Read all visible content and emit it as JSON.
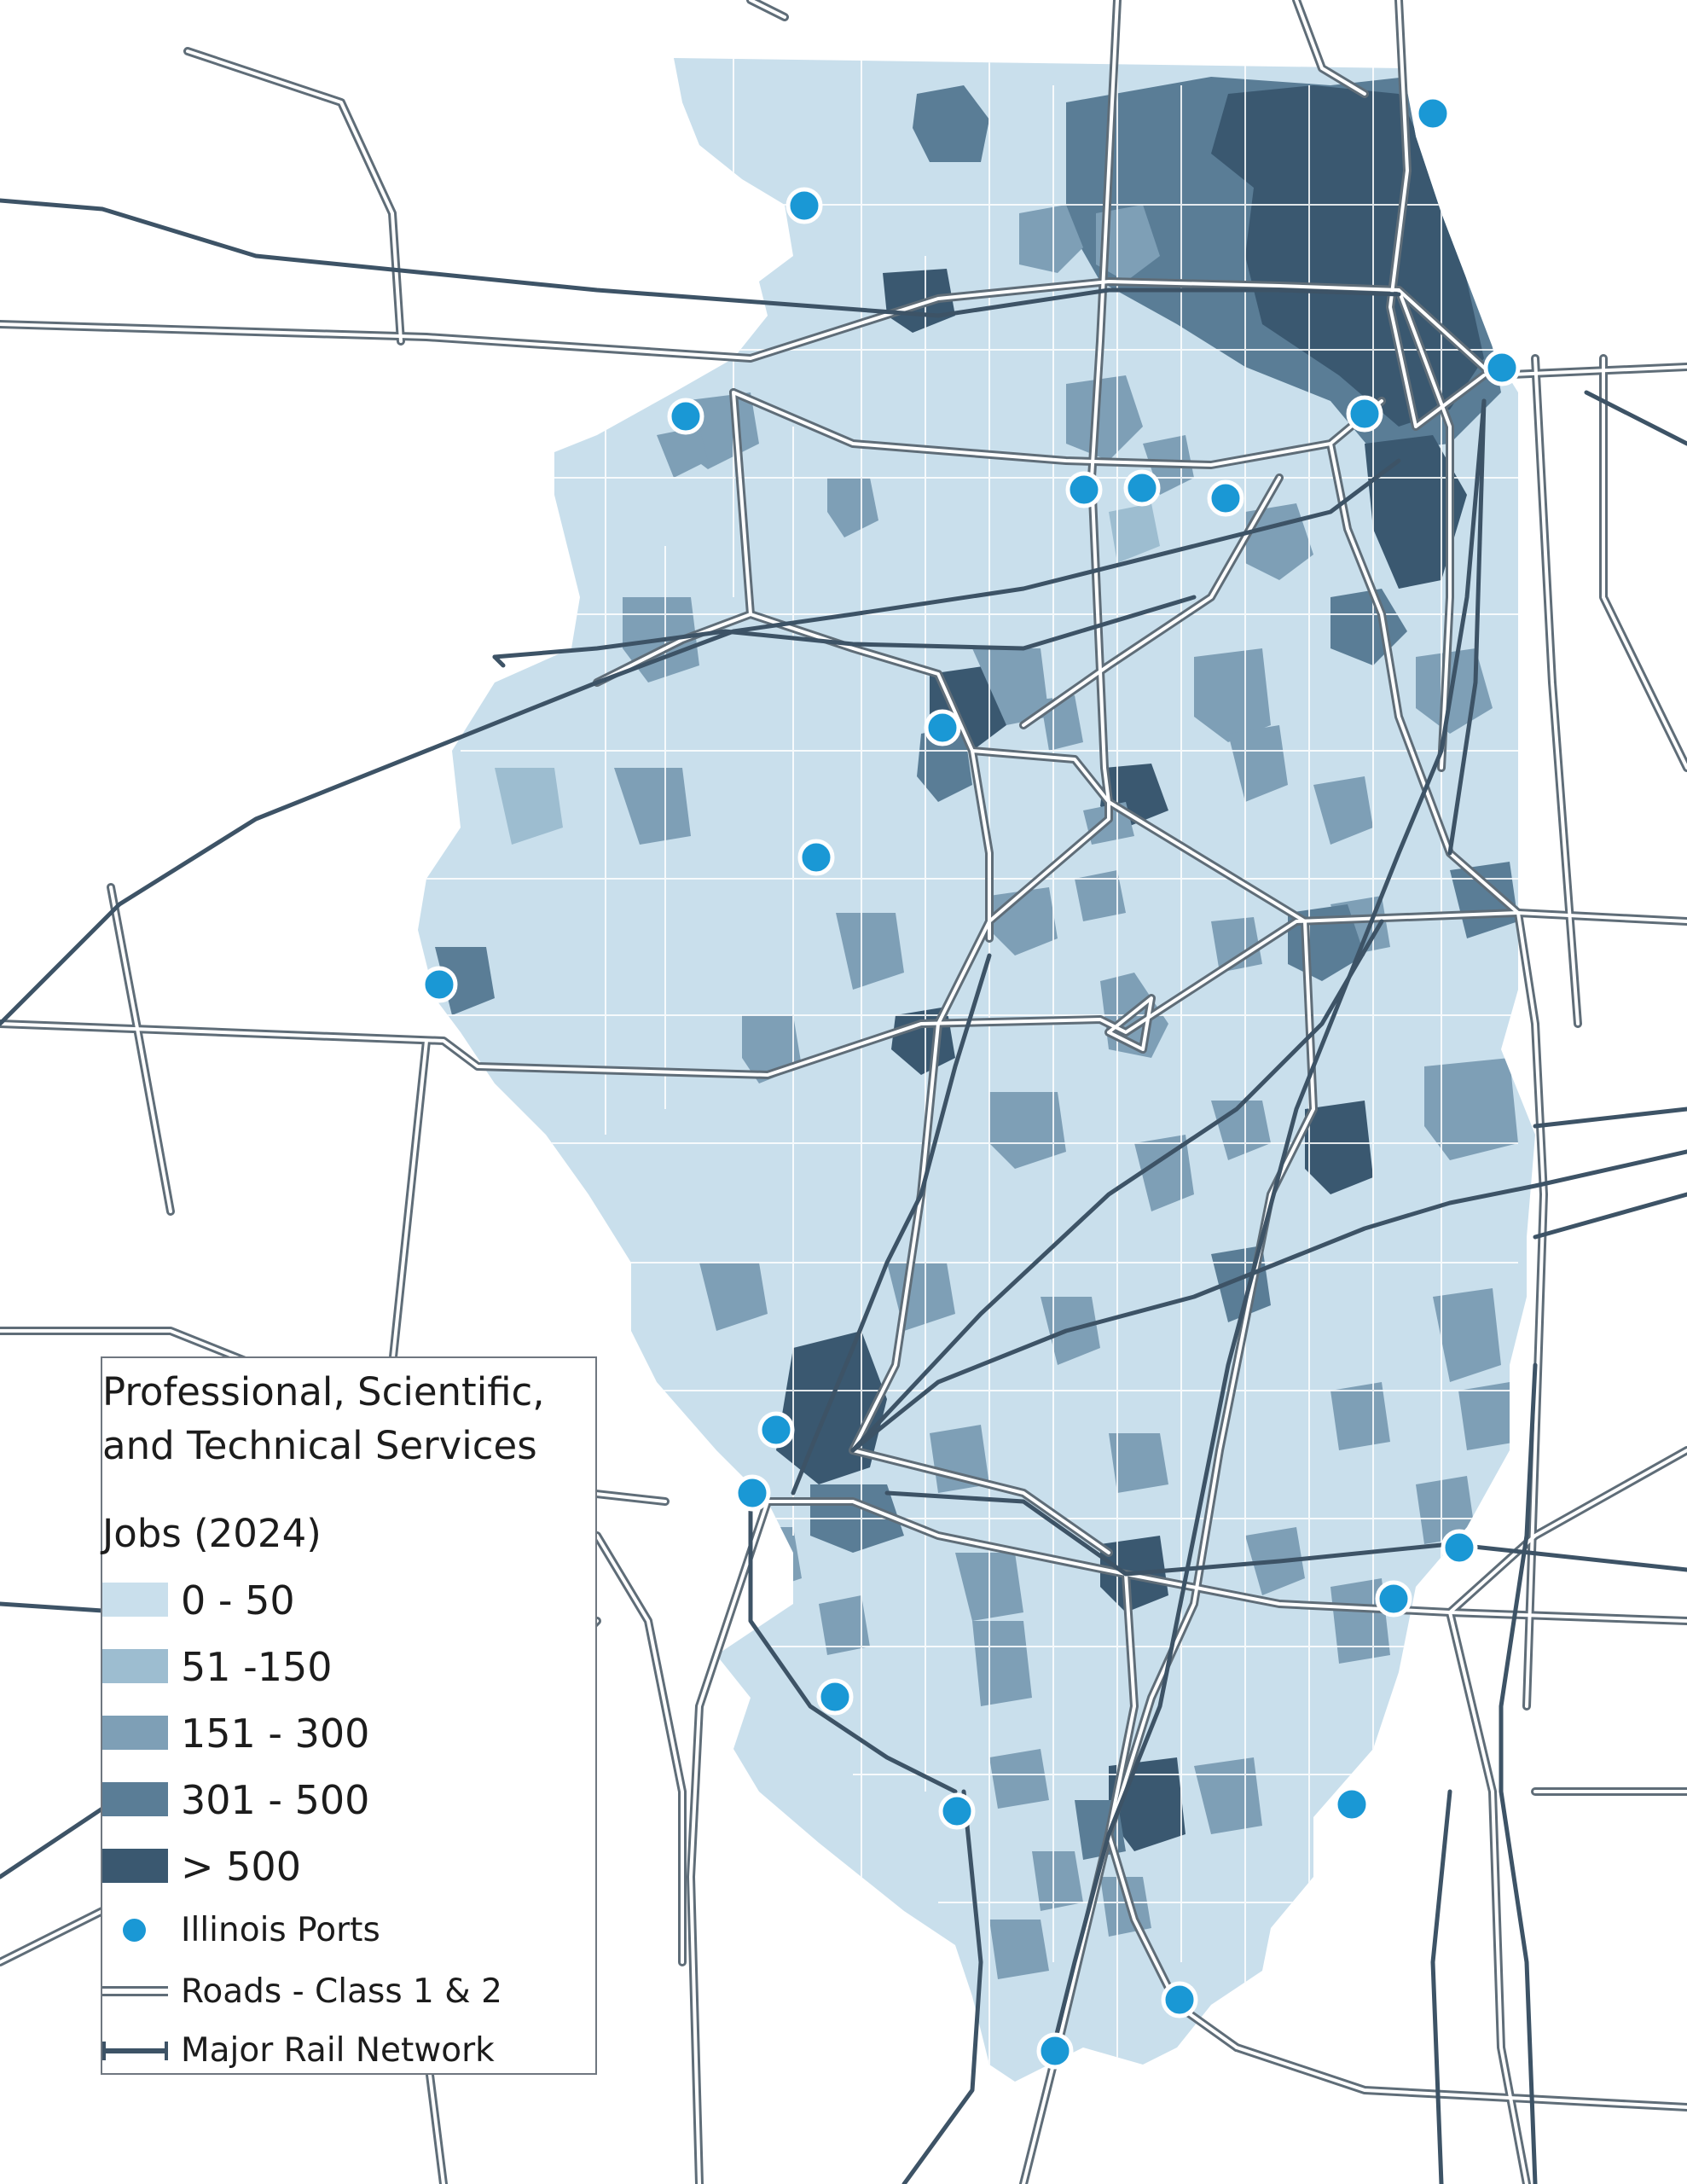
{
  "legend": {
    "title": "Professional, Scientific,\nand Technical Services",
    "subtitle": "Jobs (2024)",
    "classes": [
      {
        "label": "0 - 50",
        "color": "#c9dfec"
      },
      {
        "label": "51 -150",
        "color": "#9dbdd0"
      },
      {
        "label": "151 - 300",
        "color": "#7e9fb6"
      },
      {
        "label": "301 - 500",
        "color": "#5a7d96"
      },
      {
        "label": "> 500",
        "color": "#3a5870"
      }
    ],
    "ports_label": "Illinois Ports",
    "roads_label": "Roads - Class 1 & 2",
    "rail_label": "Major Rail Network"
  },
  "colors": {
    "state_fill": "#c9dfec",
    "county_lines": "#ffffff",
    "port": "#1a98d5",
    "road_outline": "#5f6d78",
    "rail": "#3d5366"
  }
}
